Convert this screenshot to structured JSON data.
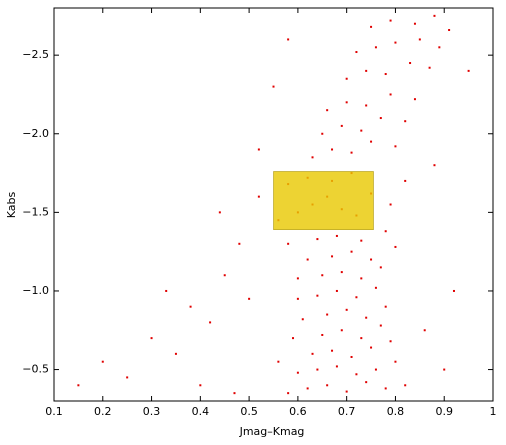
{
  "chart_data": {
    "type": "scatter",
    "x_label": "Jmag–Kmag",
    "y_label": "Kabs",
    "color": "#e00000",
    "x": [
      0.58,
      0.62,
      0.66,
      0.7,
      0.74,
      0.78,
      0.82,
      0.6,
      0.64,
      0.68,
      0.72,
      0.76,
      0.8,
      0.56,
      0.63,
      0.67,
      0.71,
      0.75,
      0.79,
      0.59,
      0.65,
      0.69,
      0.73,
      0.77,
      0.61,
      0.66,
      0.7,
      0.74,
      0.78,
      0.6,
      0.64,
      0.68,
      0.72,
      0.76,
      0.6,
      0.65,
      0.69,
      0.73,
      0.77,
      0.62,
      0.67,
      0.71,
      0.75,
      0.8,
      0.58,
      0.64,
      0.68,
      0.73,
      0.78,
      0.56,
      0.6,
      0.63,
      0.66,
      0.69,
      0.72,
      0.75,
      0.79,
      0.58,
      0.62,
      0.67,
      0.71,
      0.82,
      0.52,
      0.63,
      0.67,
      0.71,
      0.75,
      0.8,
      0.65,
      0.69,
      0.73,
      0.77,
      0.82,
      0.66,
      0.7,
      0.74,
      0.79,
      0.84,
      0.7,
      0.74,
      0.78,
      0.83,
      0.87,
      0.72,
      0.76,
      0.8,
      0.85,
      0.89,
      0.75,
      0.79,
      0.84,
      0.88,
      0.91,
      0.15,
      0.2,
      0.25,
      0.3,
      0.35,
      0.38,
      0.42,
      0.45,
      0.48,
      0.5,
      0.44,
      0.52,
      0.55,
      0.58,
      0.9,
      0.92,
      0.88,
      0.95,
      0.86,
      0.4,
      0.33,
      0.47
    ],
    "values": [
      -0.35,
      -0.38,
      -0.4,
      -0.36,
      -0.42,
      -0.38,
      -0.4,
      -0.48,
      -0.5,
      -0.52,
      -0.47,
      -0.5,
      -0.55,
      -0.55,
      -0.6,
      -0.62,
      -0.58,
      -0.64,
      -0.68,
      -0.7,
      -0.72,
      -0.75,
      -0.7,
      -0.78,
      -0.82,
      -0.85,
      -0.88,
      -0.83,
      -0.9,
      -0.95,
      -0.97,
      -1.0,
      -0.96,
      -1.02,
      -1.08,
      -1.1,
      -1.12,
      -1.08,
      -1.15,
      -1.2,
      -1.22,
      -1.25,
      -1.2,
      -1.28,
      -1.3,
      -1.33,
      -1.35,
      -1.32,
      -1.38,
      -1.45,
      -1.5,
      -1.55,
      -1.6,
      -1.52,
      -1.48,
      -1.62,
      -1.55,
      -1.68,
      -1.72,
      -1.7,
      -1.75,
      -1.7,
      -1.6,
      -1.85,
      -1.9,
      -1.88,
      -1.95,
      -1.92,
      -2.0,
      -2.05,
      -2.02,
      -2.1,
      -2.08,
      -2.15,
      -2.2,
      -2.18,
      -2.25,
      -2.22,
      -2.35,
      -2.4,
      -2.38,
      -2.45,
      -2.42,
      -2.52,
      -2.55,
      -2.58,
      -2.6,
      -2.55,
      -2.68,
      -2.72,
      -2.7,
      -2.75,
      -2.66,
      -0.4,
      -0.55,
      -0.45,
      -0.7,
      -0.6,
      -0.9,
      -0.8,
      -1.1,
      -1.3,
      -0.95,
      -1.5,
      -1.9,
      -2.3,
      -2.6,
      -0.5,
      -1.0,
      -1.8,
      -2.4,
      -0.75,
      -0.4,
      -1.0,
      -0.35
    ],
    "selection": {
      "xlim": [
        0.55,
        0.755
      ],
      "ylim": [
        -1.39,
        -1.76
      ],
      "color": "#e8c800"
    },
    "xlim": [
      0.1,
      1.0
    ],
    "ylim": [
      -0.3,
      -2.8
    ],
    "xticks": [
      0.1,
      0.2,
      0.3,
      0.4,
      0.5,
      0.6,
      0.7,
      0.8,
      0.9,
      1.0
    ],
    "yticks": [
      {
        "value": -0.5,
        "label": "−0.5"
      },
      {
        "value": -1.0,
        "label": "−1.0"
      },
      {
        "value": -1.5,
        "label": "−1.5"
      },
      {
        "value": -2.0,
        "label": "−2.0"
      },
      {
        "value": -2.5,
        "label": "−2.5"
      }
    ]
  }
}
